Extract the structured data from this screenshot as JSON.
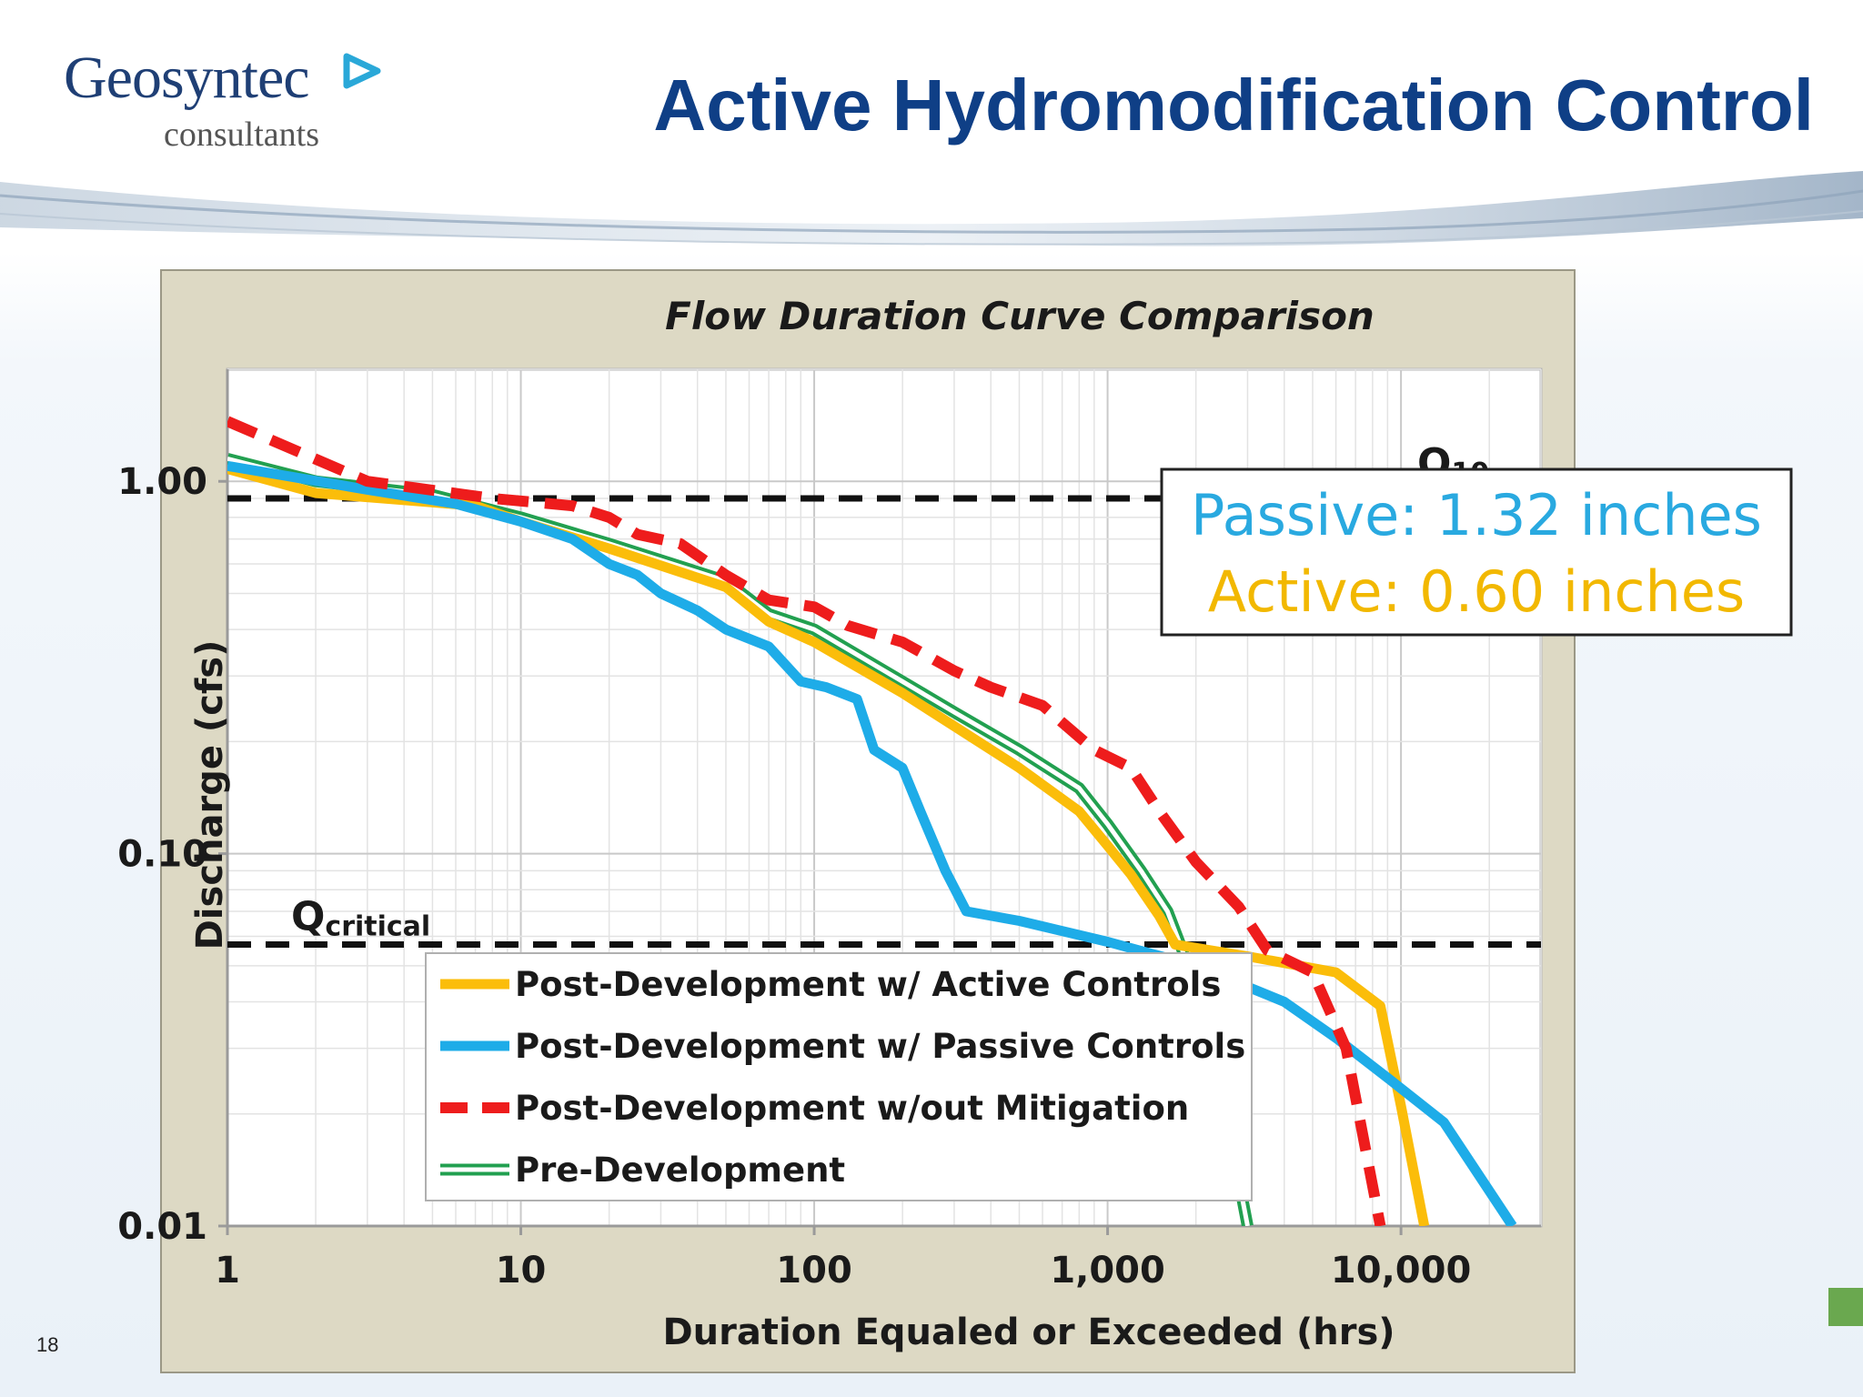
{
  "header": {
    "title": "Active Hydromodification Control",
    "logo_name": "Geosyntec",
    "logo_subtitle": "consultants",
    "logo_mark_color": "#2aa8d8"
  },
  "footer": {
    "page_number": "18"
  },
  "chart_data": {
    "type": "line",
    "title": "Flow Duration Curve Comparison",
    "xlabel": "Duration Equaled or Exceeded (hrs)",
    "ylabel": "Discharge (cfs)",
    "x_scale": "log",
    "y_scale": "log",
    "xlim": [
      1,
      30000
    ],
    "ylim": [
      0.01,
      2
    ],
    "grid": true,
    "x_ticks": [
      {
        "value": 1,
        "label": "1"
      },
      {
        "value": 10,
        "label": "10"
      },
      {
        "value": 100,
        "label": "100"
      },
      {
        "value": 1000,
        "label": "1,000"
      },
      {
        "value": 10000,
        "label": "10,000"
      }
    ],
    "y_ticks": [
      {
        "value": 1,
        "label": "1.00"
      },
      {
        "value": 0.1,
        "label": "0.10"
      },
      {
        "value": 0.01,
        "label": "0.01"
      }
    ],
    "reference_lines": [
      {
        "name": "Q10",
        "label_main": "Q",
        "label_sub": "10",
        "y": 0.9
      },
      {
        "name": "Qcritical",
        "label_main": "Q",
        "label_sub": "critical",
        "y": 0.057
      }
    ],
    "annotation_box": {
      "passive_text": "Passive: 1.32 inches",
      "active_text": "Active: 0.60 inches",
      "passive_color": "#29a9e0",
      "active_color": "#f2b800"
    },
    "legend_position": "lower-left",
    "series": [
      {
        "name": "Post-Development w/ Active Controls",
        "color": "#fbbd0a",
        "style": "solid",
        "points": [
          [
            1,
            1.08
          ],
          [
            2,
            0.93
          ],
          [
            7,
            0.86
          ],
          [
            10,
            0.78
          ],
          [
            20,
            0.66
          ],
          [
            50,
            0.52
          ],
          [
            70,
            0.42
          ],
          [
            100,
            0.37
          ],
          [
            200,
            0.27
          ],
          [
            300,
            0.22
          ],
          [
            500,
            0.17
          ],
          [
            800,
            0.13
          ],
          [
            1000,
            0.105
          ],
          [
            1200,
            0.088
          ],
          [
            1500,
            0.068
          ],
          [
            1700,
            0.057
          ],
          [
            3000,
            0.053
          ],
          [
            6000,
            0.048
          ],
          [
            8500,
            0.039
          ],
          [
            10000,
            0.021
          ],
          [
            12000,
            0.01
          ]
        ]
      },
      {
        "name": "Post-Development w/ Passive Controls",
        "color": "#1eace8",
        "style": "solid",
        "points": [
          [
            1,
            1.1
          ],
          [
            3,
            0.95
          ],
          [
            6,
            0.87
          ],
          [
            10,
            0.78
          ],
          [
            15,
            0.7
          ],
          [
            20,
            0.6
          ],
          [
            25,
            0.56
          ],
          [
            30,
            0.5
          ],
          [
            40,
            0.45
          ],
          [
            50,
            0.4
          ],
          [
            70,
            0.36
          ],
          [
            90,
            0.29
          ],
          [
            110,
            0.28
          ],
          [
            140,
            0.26
          ],
          [
            160,
            0.19
          ],
          [
            200,
            0.17
          ],
          [
            230,
            0.13
          ],
          [
            280,
            0.09
          ],
          [
            330,
            0.07
          ],
          [
            500,
            0.066
          ],
          [
            1000,
            0.058
          ],
          [
            2000,
            0.05
          ],
          [
            4000,
            0.04
          ],
          [
            6000,
            0.032
          ],
          [
            9000,
            0.025
          ],
          [
            14000,
            0.019
          ],
          [
            24000,
            0.01
          ]
        ]
      },
      {
        "name": "Post-Development w/out Mitigation",
        "color": "#ee1c1c",
        "style": "dashed",
        "points": [
          [
            1,
            1.45
          ],
          [
            3,
            1.0
          ],
          [
            8,
            0.9
          ],
          [
            15,
            0.86
          ],
          [
            20,
            0.8
          ],
          [
            25,
            0.72
          ],
          [
            35,
            0.68
          ],
          [
            50,
            0.56
          ],
          [
            70,
            0.48
          ],
          [
            100,
            0.46
          ],
          [
            130,
            0.41
          ],
          [
            200,
            0.37
          ],
          [
            300,
            0.31
          ],
          [
            400,
            0.28
          ],
          [
            600,
            0.25
          ],
          [
            900,
            0.19
          ],
          [
            1200,
            0.17
          ],
          [
            1500,
            0.13
          ],
          [
            2000,
            0.095
          ],
          [
            2800,
            0.072
          ],
          [
            3500,
            0.055
          ],
          [
            5000,
            0.048
          ],
          [
            6500,
            0.03
          ],
          [
            8500,
            0.01
          ]
        ]
      },
      {
        "name": "Pre-Development",
        "color": "#22a050",
        "style": "double",
        "points": [
          [
            1,
            1.15
          ],
          [
            2,
            1.0
          ],
          [
            5,
            0.92
          ],
          [
            10,
            0.8
          ],
          [
            20,
            0.68
          ],
          [
            50,
            0.54
          ],
          [
            70,
            0.44
          ],
          [
            100,
            0.4
          ],
          [
            200,
            0.29
          ],
          [
            300,
            0.24
          ],
          [
            500,
            0.19
          ],
          [
            800,
            0.15
          ],
          [
            1000,
            0.12
          ],
          [
            1300,
            0.09
          ],
          [
            1600,
            0.07
          ],
          [
            1800,
            0.055
          ],
          [
            2200,
            0.03
          ],
          [
            2600,
            0.018
          ],
          [
            3000,
            0.01
          ]
        ]
      }
    ]
  }
}
